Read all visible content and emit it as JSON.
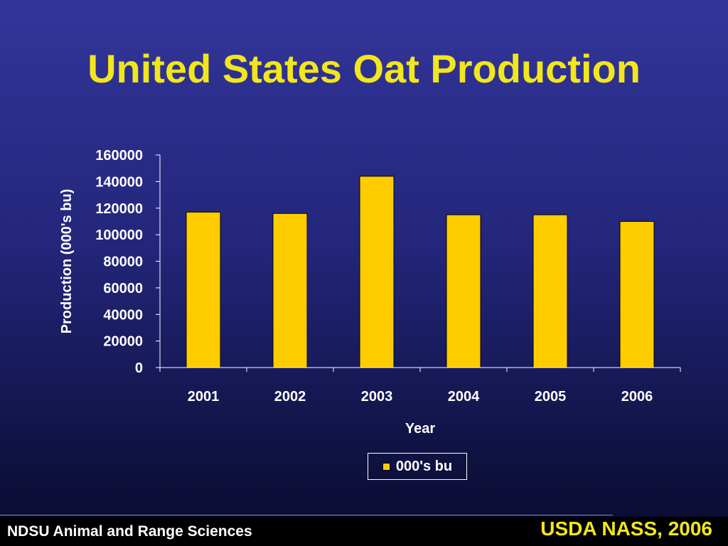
{
  "slide": {
    "title": "United States Oat Production",
    "title_color": "#f2e61c",
    "footer_left": "NDSU Animal and Range Sciences",
    "footer_right": "USDA NASS, 2006"
  },
  "chart_data": {
    "type": "bar",
    "categories": [
      "2001",
      "2002",
      "2003",
      "2004",
      "2005",
      "2006"
    ],
    "series": [
      {
        "name": "000's bu",
        "values": [
          117000,
          116000,
          144000,
          115000,
          115000,
          110000
        ],
        "color": "#ffcc00"
      }
    ],
    "xlabel": "Year",
    "ylabel": "Production (000's bu)",
    "ylim": [
      0,
      160000
    ],
    "yticks": [
      "0",
      "20000",
      "40000",
      "60000",
      "80000",
      "100000",
      "120000",
      "140000",
      "160000"
    ],
    "grid": false,
    "legend": "bottom-center"
  }
}
